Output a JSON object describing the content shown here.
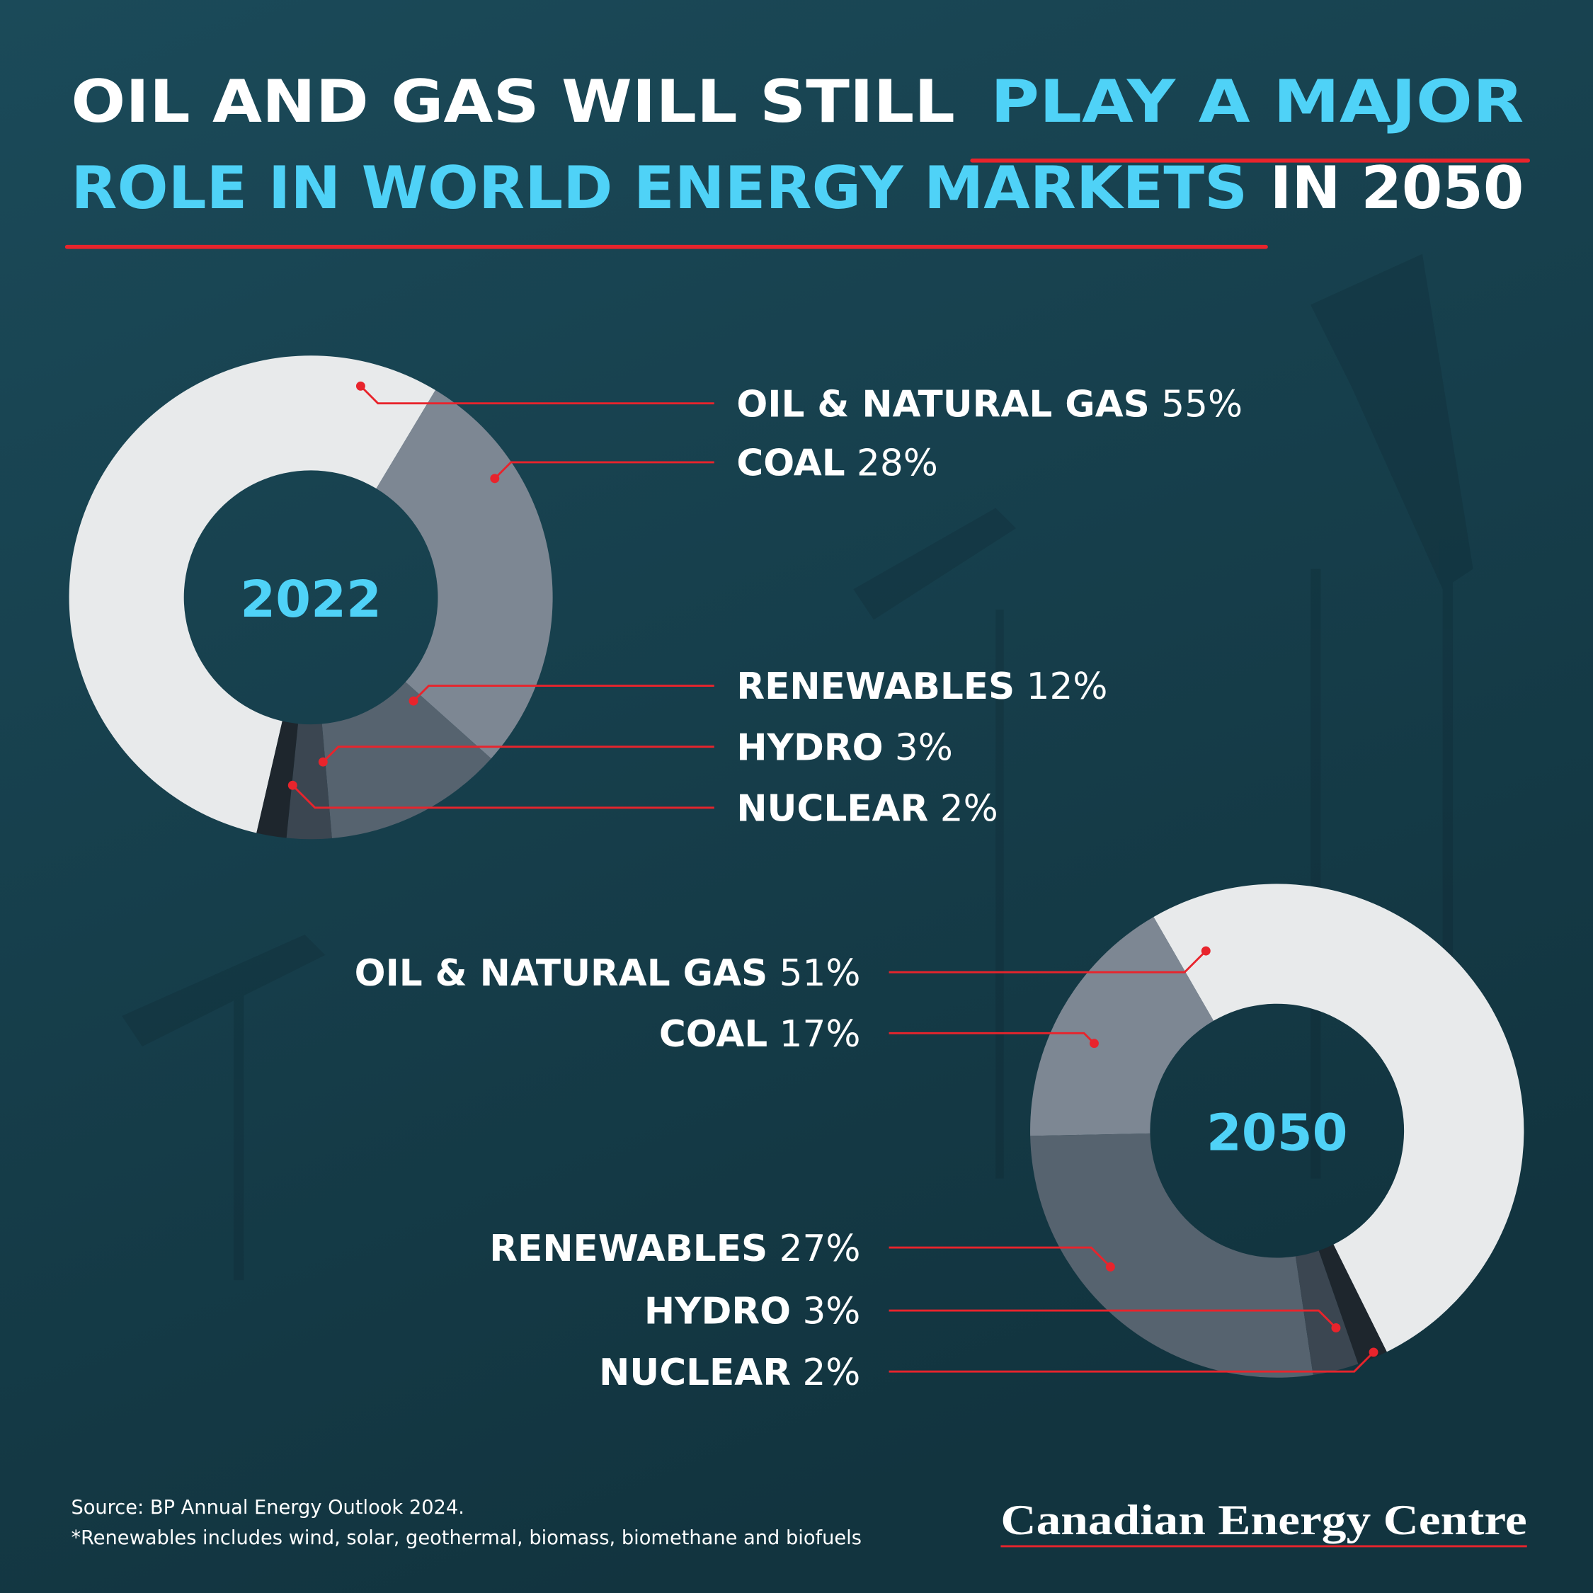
{
  "header": {
    "title": [
      {
        "text": "OIL AND GAS WILL STILL",
        "color": "#ffffff"
      },
      {
        "text": "PLAY A MAJOR",
        "color": "#4fd2f7"
      },
      {
        "text": "ROLE IN WORLD ENERGY MARKETS",
        "color": "#4fd2f7"
      },
      {
        "text": "IN 2050",
        "color": "#ffffff"
      }
    ]
  },
  "chart_data": [
    {
      "type": "pie",
      "title": "2022",
      "categories": [
        "OIL & NATURAL GAS",
        "COAL",
        "RENEWABLES",
        "HYDRO",
        "NUCLEAR"
      ],
      "values": [
        55,
        28,
        12,
        3,
        2
      ],
      "value_labels": [
        "55%",
        "28%",
        "12%",
        "3%",
        "2%"
      ],
      "colors": [
        "#e8eaeb",
        "#7d8793",
        "#56636f",
        "#3b4651",
        "#1e262d"
      ]
    },
    {
      "type": "pie",
      "title": "2050",
      "categories": [
        "OIL & NATURAL GAS",
        "COAL",
        "RENEWABLES",
        "HYDRO",
        "NUCLEAR"
      ],
      "values": [
        51,
        17,
        27,
        3,
        2
      ],
      "value_labels": [
        "51%",
        "17%",
        "27%",
        "3%",
        "2%"
      ],
      "colors": [
        "#e8eaeb",
        "#7d8793",
        "#56636f",
        "#3b4651",
        "#1e262d"
      ]
    }
  ],
  "footer": {
    "source": "Source: BP Annual Energy Outlook 2024.",
    "note": "*Renewables includes wind, solar, geothermal, biomass, biomethane and biofuels",
    "logo": "Canadian Energy Centre"
  }
}
